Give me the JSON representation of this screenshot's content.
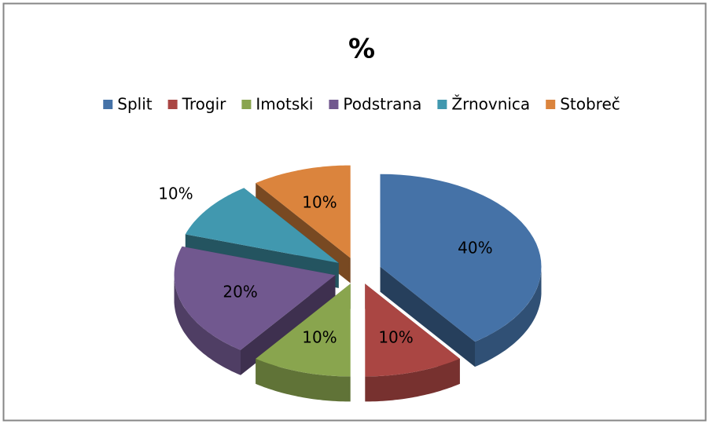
{
  "chart_data": {
    "type": "pie",
    "title": "%",
    "categories": [
      "Split",
      "Trogir",
      "Imotski",
      "Podstrana",
      "Žrnovnica",
      "Stobreč"
    ],
    "values": [
      40,
      10,
      10,
      20,
      10,
      10
    ],
    "value_labels": [
      "40%",
      "10%",
      "10%",
      "20%",
      "10%",
      "10%"
    ],
    "colors": [
      "#4572A7",
      "#AA4643",
      "#89A54E",
      "#71588F",
      "#4198AF",
      "#DB843D"
    ],
    "legend": "top"
  }
}
